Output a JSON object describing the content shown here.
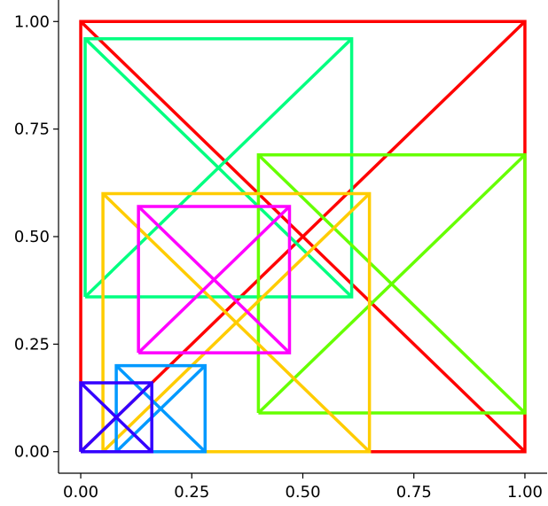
{
  "chart_data": {
    "type": "line",
    "title": "",
    "xlabel": "",
    "ylabel": "",
    "xlim": [
      -0.05,
      1.05
    ],
    "ylim": [
      -0.05,
      1.05
    ],
    "grid": false,
    "x_ticks": [
      {
        "value": 0.0,
        "label": "0.00"
      },
      {
        "value": 0.25,
        "label": "0.25"
      },
      {
        "value": 0.5,
        "label": "0.50"
      },
      {
        "value": 0.75,
        "label": "0.75"
      },
      {
        "value": 1.0,
        "label": "1.00"
      }
    ],
    "y_ticks": [
      {
        "value": 0.0,
        "label": "0.00"
      },
      {
        "value": 0.25,
        "label": "0.25"
      },
      {
        "value": 0.5,
        "label": "0.50"
      },
      {
        "value": 0.75,
        "label": "0.75"
      },
      {
        "value": 1.0,
        "label": "1.00"
      }
    ],
    "shapes": [
      {
        "kind": "crossed-rectangle",
        "color": "#ff0000",
        "x0": 0.0,
        "y0": 0.0,
        "x1": 1.0,
        "y1": 1.0
      },
      {
        "kind": "crossed-rectangle",
        "color": "#00ff80",
        "x0": 0.01,
        "y0": 0.36,
        "x1": 0.61,
        "y1": 0.96
      },
      {
        "kind": "crossed-rectangle",
        "color": "#66ff00",
        "x0": 0.4,
        "y0": 0.09,
        "x1": 1.0,
        "y1": 0.69
      },
      {
        "kind": "crossed-rectangle",
        "color": "#ffcc00",
        "x0": 0.05,
        "y0": 0.0,
        "x1": 0.65,
        "y1": 0.6
      },
      {
        "kind": "crossed-rectangle",
        "color": "#ff00ff",
        "x0": 0.13,
        "y0": 0.23,
        "x1": 0.47,
        "y1": 0.57
      },
      {
        "kind": "crossed-rectangle",
        "color": "#0099ff",
        "x0": 0.08,
        "y0": 0.0,
        "x1": 0.28,
        "y1": 0.2
      },
      {
        "kind": "crossed-rectangle",
        "color": "#3300ff",
        "x0": 0.0,
        "y0": 0.0,
        "x1": 0.16,
        "y1": 0.16
      }
    ]
  }
}
